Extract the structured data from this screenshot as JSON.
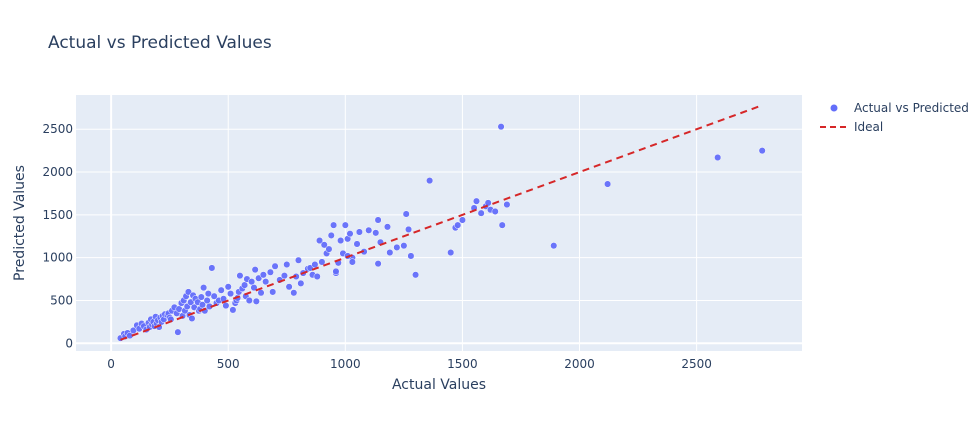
{
  "chart_data": {
    "type": "scatter",
    "title": "Actual vs Predicted Values",
    "xlabel": "Actual Values",
    "ylabel": "Predicted Values",
    "xlim": [
      -150,
      2950
    ],
    "ylim": [
      -90,
      2900
    ],
    "x_ticks": [
      0,
      500,
      1000,
      1500,
      2000,
      2500
    ],
    "y_ticks": [
      0,
      500,
      1000,
      1500,
      2000,
      2500
    ],
    "grid": true,
    "legend_position": "top-right",
    "colors": {
      "background": "#e5ecf6",
      "points": "#636efa",
      "ideal": "#d62728",
      "grid": "#ffffff",
      "text": "#2a3f5f"
    },
    "series": [
      {
        "name": "Actual vs Predicted",
        "mode": "markers",
        "x": [
          40,
          55,
          60,
          70,
          80,
          95,
          110,
          120,
          130,
          140,
          150,
          160,
          165,
          170,
          175,
          180,
          185,
          190,
          195,
          200,
          205,
          210,
          215,
          220,
          225,
          230,
          240,
          245,
          250,
          255,
          260,
          270,
          280,
          285,
          290,
          300,
          305,
          310,
          315,
          320,
          325,
          330,
          335,
          340,
          345,
          350,
          355,
          360,
          370,
          375,
          380,
          385,
          390,
          395,
          400,
          410,
          415,
          420,
          430,
          440,
          450,
          460,
          470,
          480,
          490,
          500,
          510,
          520,
          530,
          535,
          540,
          545,
          550,
          560,
          570,
          575,
          580,
          590,
          600,
          610,
          615,
          620,
          630,
          640,
          650,
          660,
          680,
          690,
          700,
          720,
          740,
          750,
          760,
          780,
          790,
          800,
          810,
          820,
          840,
          850,
          860,
          870,
          880,
          890,
          900,
          910,
          920,
          930,
          940,
          950,
          960,
          970,
          980,
          990,
          1000,
          1010,
          1020,
          1030,
          1050,
          1060,
          1080,
          1100,
          1130,
          1140,
          1150,
          1180,
          1190,
          1220,
          1260,
          1270,
          1280,
          1300,
          1360,
          1450,
          1470,
          1480,
          1500,
          1550,
          1560,
          1580,
          1600,
          1610,
          1620,
          1640,
          1670,
          1690,
          1890,
          2120,
          2590,
          2780,
          1665,
          1030,
          1140,
          1250,
          1010,
          960
        ],
        "y": [
          60,
          110,
          80,
          120,
          90,
          150,
          210,
          170,
          230,
          200,
          160,
          240,
          190,
          280,
          220,
          250,
          200,
          310,
          230,
          270,
          190,
          300,
          250,
          320,
          280,
          340,
          330,
          350,
          300,
          280,
          380,
          420,
          350,
          130,
          400,
          470,
          320,
          500,
          380,
          550,
          430,
          600,
          330,
          480,
          290,
          560,
          420,
          520,
          480,
          380,
          400,
          540,
          450,
          650,
          380,
          500,
          580,
          430,
          880,
          550,
          470,
          500,
          620,
          520,
          440,
          660,
          580,
          390,
          470,
          500,
          530,
          600,
          790,
          640,
          680,
          550,
          750,
          500,
          720,
          650,
          860,
          490,
          760,
          590,
          800,
          720,
          830,
          600,
          900,
          740,
          790,
          920,
          660,
          590,
          780,
          970,
          700,
          820,
          870,
          880,
          800,
          920,
          780,
          1200,
          950,
          1150,
          1050,
          1100,
          1260,
          1380,
          820,
          940,
          1200,
          1050,
          1380,
          1220,
          1280,
          1000,
          1160,
          1300,
          1070,
          1320,
          1290,
          1440,
          1180,
          1360,
          1060,
          1120,
          1510,
          1330,
          1020,
          800,
          1900,
          1060,
          1350,
          1380,
          1440,
          1580,
          1660,
          1520,
          1600,
          1640,
          1560,
          1540,
          1380,
          1620,
          1140,
          1860,
          2170,
          2250,
          2530,
          950,
          930,
          1140,
          1020,
          840
        ],
        "color": "#636efa"
      },
      {
        "name": "Ideal",
        "mode": "line",
        "style": "dashed",
        "x": [
          40,
          2780
        ],
        "y": [
          40,
          2780
        ],
        "color": "#d62728"
      }
    ]
  }
}
